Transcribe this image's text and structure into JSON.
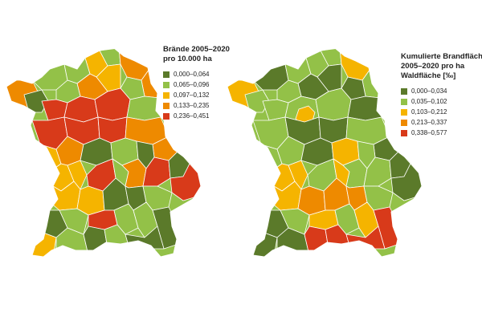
{
  "maps": [
    {
      "legend": {
        "title_lines": [
          "Brände 2005–2020",
          "pro 10.000 ha"
        ],
        "classes": [
          {
            "label": "0,000–0,064",
            "color": "#5b7a2a"
          },
          {
            "label": "0,065–0,096",
            "color": "#93c148"
          },
          {
            "label": "0,097–0,132",
            "color": "#f5b400"
          },
          {
            "label": "0,133–0,235",
            "color": "#ee8a00"
          },
          {
            "label": "0,236–0,451",
            "color": "#d83a1a"
          }
        ]
      }
    },
    {
      "legend": {
        "title_lines": [
          "Kumulierte Brandfläche",
          "2005–2020 pro ha",
          "Waldfläche [‰]"
        ],
        "classes": [
          {
            "label": "0,000–0,034",
            "color": "#5b7a2a"
          },
          {
            "label": "0,035–0,102",
            "color": "#93c148"
          },
          {
            "label": "0,103–0,212",
            "color": "#f5b400"
          },
          {
            "label": "0,213–0,337",
            "color": "#ee8a00"
          },
          {
            "label": "0,338–0,577",
            "color": "#d83a1a"
          }
        ]
      }
    }
  ]
}
